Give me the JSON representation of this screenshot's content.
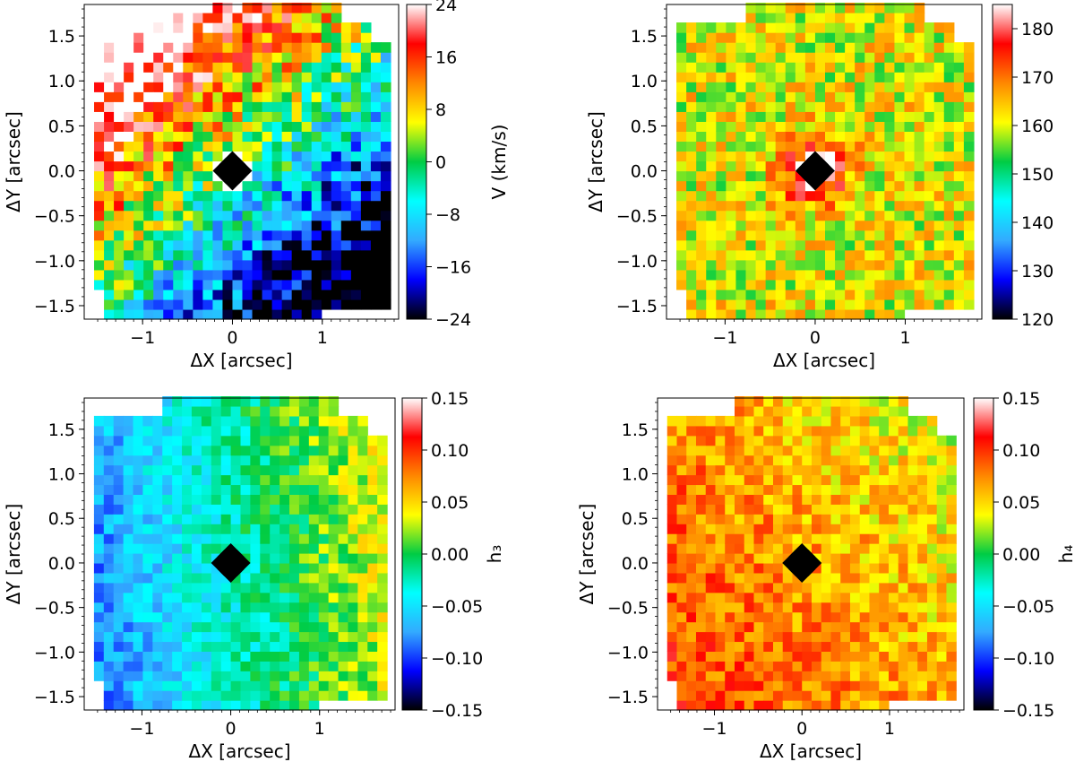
{
  "chart_data": [
    {
      "type": "heatmap",
      "quantity": "velocity",
      "xlabel": "ΔX [arcsec]",
      "ylabel": "ΔY [arcsec]",
      "colorbar_label": "V (km/s)",
      "colormap": "sauron",
      "clim": [
        -24,
        24
      ],
      "colorbar_ticks": [
        "−24",
        "−16",
        "−8",
        "0",
        "8",
        "16",
        "24"
      ],
      "colorbar_tick_values": [
        -24,
        -16,
        -8,
        0,
        8,
        16,
        24
      ],
      "xlim": [
        -1.65,
        1.85
      ],
      "ylim": [
        -1.65,
        1.85
      ],
      "xticks": [
        "−1",
        "0",
        "1"
      ],
      "xtick_values": [
        -1,
        0,
        1
      ],
      "yticks": [
        "−1.5",
        "−1.0",
        "−0.5",
        "0.0",
        "0.5",
        "1.0",
        "1.5"
      ],
      "ytick_values": [
        -1.5,
        -1.0,
        -0.5,
        0.0,
        0.5,
        1.0,
        1.5
      ],
      "center_marker": "diamond",
      "map_description": "redshifted (positive V) toward lower-left, blueshifted (negative V) toward upper-right",
      "pattern": {
        "gradient": [
          -10,
          11
        ],
        "amplitude": 24,
        "noise": 9,
        "center_value": 30,
        "seed": 11
      }
    },
    {
      "type": "heatmap",
      "quantity": "dispersion",
      "xlabel": "ΔX [arcsec]",
      "ylabel": "ΔY [arcsec]",
      "colorbar_label": "σ (km/s)",
      "colormap": "sauron",
      "clim": [
        120,
        185
      ],
      "colorbar_ticks": [
        "120",
        "130",
        "140",
        "150",
        "160",
        "170",
        "180"
      ],
      "colorbar_tick_values": [
        120,
        130,
        140,
        150,
        160,
        170,
        180
      ],
      "xlim": [
        -1.65,
        1.85
      ],
      "ylim": [
        -1.65,
        1.85
      ],
      "xticks": [
        "−1",
        "0",
        "1"
      ],
      "xtick_values": [
        -1,
        0,
        1
      ],
      "yticks": [
        "−1.5",
        "−1.0",
        "−0.5",
        "0.0",
        "0.5",
        "1.0",
        "1.5"
      ],
      "ytick_values": [
        -1.5,
        -1.0,
        -0.5,
        0.0,
        0.5,
        1.0,
        1.5
      ],
      "center_marker": "diamond",
      "map_description": "peak dispersion ~185 km/s at center, ~160 km/s in outer regions",
      "pattern": {
        "base": 161,
        "peak": 26,
        "noise": 8,
        "seed": 23
      }
    },
    {
      "type": "heatmap",
      "quantity": "h3",
      "xlabel": "ΔX [arcsec]",
      "ylabel": "ΔY [arcsec]",
      "colorbar_label": "h₃",
      "colormap": "sauron",
      "clim": [
        -0.15,
        0.15
      ],
      "colorbar_ticks": [
        "−0.15",
        "−0.10",
        "−0.05",
        "0.00",
        "0.05",
        "0.10",
        "0.15"
      ],
      "colorbar_tick_values": [
        -0.15,
        -0.1,
        -0.05,
        0.0,
        0.05,
        0.1,
        0.15
      ],
      "xlim": [
        -1.65,
        1.85
      ],
      "ylim": [
        -1.65,
        1.85
      ],
      "xticks": [
        "−1",
        "0",
        "1"
      ],
      "xtick_values": [
        -1,
        0,
        1
      ],
      "yticks": [
        "−1.5",
        "−1.0",
        "−0.5",
        "0.0",
        "0.5",
        "1.0",
        "1.5"
      ],
      "ytick_values": [
        -1.5,
        -1.0,
        -0.5,
        0.0,
        0.5,
        1.0,
        1.5
      ],
      "center_marker": "diamond",
      "map_description": "negative h3 on left/lower side (~-0.1), near zero to slightly positive on right",
      "pattern": {
        "gradient": [
          0.035,
          0.004
        ],
        "offset": -0.025,
        "noise": 0.025,
        "seed": 37
      }
    },
    {
      "type": "heatmap",
      "quantity": "h4",
      "xlabel": "ΔX [arcsec]",
      "ylabel": "ΔY [arcsec]",
      "colorbar_label": "h₄",
      "colormap": "sauron",
      "clim": [
        -0.15,
        0.15
      ],
      "colorbar_ticks": [
        "−0.15",
        "−0.10",
        "−0.05",
        "0.00",
        "0.05",
        "0.10",
        "0.15"
      ],
      "colorbar_tick_values": [
        -0.15,
        -0.1,
        -0.05,
        0.0,
        0.05,
        0.1,
        0.15
      ],
      "xlim": [
        -1.65,
        1.85
      ],
      "ylim": [
        -1.65,
        1.85
      ],
      "xticks": [
        "−1",
        "0",
        "1"
      ],
      "xtick_values": [
        -1,
        0,
        1
      ],
      "yticks": [
        "−1.5",
        "−1.0",
        "−0.5",
        "0.0",
        "0.5",
        "1.0",
        "1.5"
      ],
      "ytick_values": [
        -1.5,
        -1.0,
        -0.5,
        0.0,
        0.5,
        1.0,
        1.5
      ],
      "center_marker": "diamond",
      "map_description": "mostly positive h4 (~0.05-0.10), higher on the lower-left",
      "pattern": {
        "gradient": [
          -0.012,
          -0.008
        ],
        "offset": 0.068,
        "noise": 0.028,
        "seed": 53
      }
    }
  ],
  "colors": {
    "sauron": [
      "#000000",
      "#0000ff",
      "#33aaff",
      "#00ffff",
      "#00cc44",
      "#ffff00",
      "#ff8800",
      "#ff0000",
      "#ffffff"
    ],
    "marker": "#000000",
    "masked": "#ffffff"
  }
}
